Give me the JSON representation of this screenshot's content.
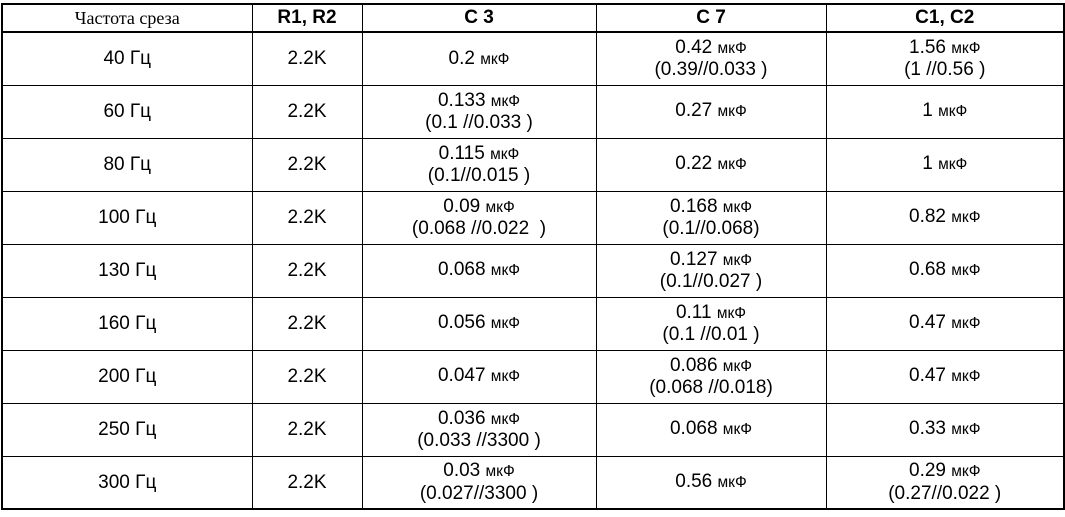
{
  "colors": {
    "background": "#ffffff",
    "border": "#000000",
    "text": "#000000"
  },
  "table": {
    "headers": [
      "Частота среза",
      "R1, R2",
      "C 3",
      "C 7",
      "C1, C2"
    ],
    "capacitance_unit": "мкФ",
    "frequency_unit": "Гц",
    "rows": [
      {
        "frequency": "40 Гц",
        "r1_r2": "2.2K",
        "c3": [
          "0.2 мкФ"
        ],
        "c7": [
          "0.42 мкФ",
          "(0.39//0.033 )"
        ],
        "c1_c2": [
          "1.56 мкФ",
          "(1 //0.56 )"
        ]
      },
      {
        "frequency": "60 Гц",
        "r1_r2": "2.2K",
        "c3": [
          "0.133 мкФ",
          "(0.1 //0.033 )"
        ],
        "c7": [
          "0.27 мкФ"
        ],
        "c1_c2": [
          "1 мкФ"
        ]
      },
      {
        "frequency": "80 Гц",
        "r1_r2": "2.2K",
        "c3": [
          "0.115 мкФ",
          "(0.1//0.015 )"
        ],
        "c7": [
          "0.22 мкФ"
        ],
        "c1_c2": [
          "1 мкФ"
        ]
      },
      {
        "frequency": "100 Гц",
        "r1_r2": "2.2K",
        "c3": [
          "0.09 мкФ",
          "(0.068 //0.022  )"
        ],
        "c7": [
          "0.168 мкФ",
          "(0.1//0.068)"
        ],
        "c1_c2": [
          "0.82 мкФ"
        ]
      },
      {
        "frequency": "130 Гц",
        "r1_r2": "2.2K",
        "c3": [
          "0.068 мкФ"
        ],
        "c7": [
          "0.127 мкФ",
          "(0.1//0.027 )"
        ],
        "c1_c2": [
          "0.68 мкФ"
        ]
      },
      {
        "frequency": "160 Гц",
        "r1_r2": "2.2K",
        "c3": [
          "0.056 мкФ"
        ],
        "c7": [
          "0.11 мкФ",
          "(0.1 //0.01 )"
        ],
        "c1_c2": [
          "0.47 мкФ"
        ]
      },
      {
        "frequency": "200 Гц",
        "r1_r2": "2.2K",
        "c3": [
          "0.047 мкФ"
        ],
        "c7": [
          "0.086 мкФ",
          "(0.068 //0.018)"
        ],
        "c1_c2": [
          "0.47 мкФ"
        ]
      },
      {
        "frequency": "250 Гц",
        "r1_r2": "2.2K",
        "c3": [
          "0.036 мкФ",
          "(0.033 //3300 )"
        ],
        "c7": [
          "0.068 мкФ"
        ],
        "c1_c2": [
          "0.33 мкФ"
        ]
      },
      {
        "frequency": "300 Гц",
        "r1_r2": "2.2K",
        "c3": [
          "0.03 мкФ",
          "(0.027//3300 )"
        ],
        "c7": [
          "0.56 мкФ"
        ],
        "c1_c2": [
          "0.29 мкФ",
          "(0.27//0.022 )"
        ]
      }
    ]
  }
}
